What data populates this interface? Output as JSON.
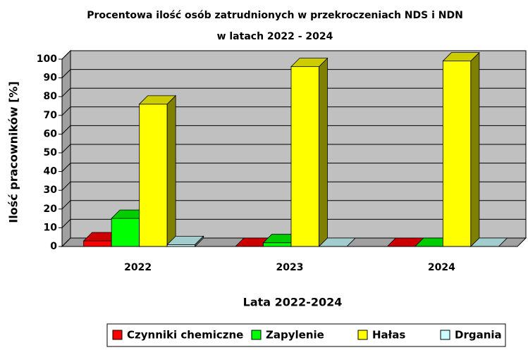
{
  "chart_data": {
    "type": "bar3d",
    "title": [
      "Procentowa ilość osób zatrudnionych w przekroczeniach NDS i NDN",
      "w latach 2022 - 2024"
    ],
    "x_label": "Lata 2022-2024",
    "y_label": "Ilość pracowników [%]",
    "categories": [
      "2022",
      "2023",
      "2024"
    ],
    "series": [
      {
        "name": "Czynniki chemiczne",
        "color": "#ff0000",
        "values": [
          3,
          0,
          0
        ]
      },
      {
        "name": "Zapylenie",
        "color": "#00ff00",
        "values": [
          15,
          2,
          0
        ]
      },
      {
        "name": "Hałas",
        "color": "#ffff00",
        "values": [
          76,
          96,
          99
        ]
      },
      {
        "name": "Drgania",
        "color": "#ccffff",
        "values": [
          1,
          0,
          0
        ]
      }
    ],
    "ylim": [
      0,
      100
    ],
    "yticks": [
      0,
      10,
      20,
      30,
      40,
      50,
      60,
      70,
      80,
      90,
      100
    ],
    "grid": true,
    "legend": "bottom"
  }
}
